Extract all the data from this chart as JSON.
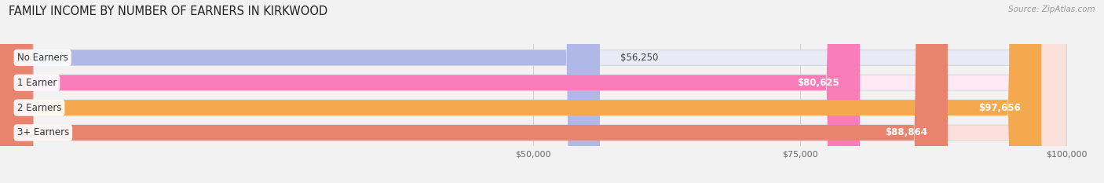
{
  "title": "FAMILY INCOME BY NUMBER OF EARNERS IN KIRKWOOD",
  "source": "Source: ZipAtlas.com",
  "categories": [
    "No Earners",
    "1 Earner",
    "2 Earners",
    "3+ Earners"
  ],
  "values": [
    56250,
    80625,
    97656,
    88864
  ],
  "bar_colors": [
    "#b0b8e8",
    "#f97db8",
    "#f5a94e",
    "#e8836e"
  ],
  "bar_bg_colors": [
    "#e8eaf6",
    "#fdeaf4",
    "#fdf0e0",
    "#fae0da"
  ],
  "xmin": 0,
  "xmax": 100000,
  "xticks": [
    50000,
    75000,
    100000
  ],
  "xtick_labels": [
    "$50,000",
    "$75,000",
    "$100,000"
  ],
  "figsize": [
    14.06,
    2.33
  ],
  "dpi": 100,
  "title_fontsize": 10.5,
  "bar_height": 0.62,
  "value_fontsize": 8.5,
  "category_fontsize": 8.5,
  "bg_color": "#f2f2f2"
}
